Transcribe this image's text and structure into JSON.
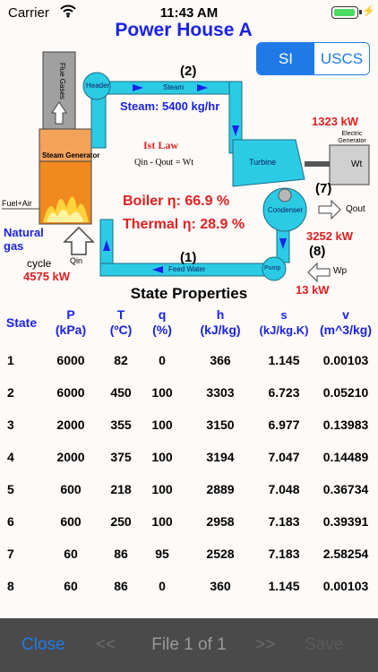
{
  "status_bar": {
    "carrier": "Carrier",
    "time": "11:43 AM"
  },
  "title": "Power House A",
  "units": {
    "si": "SI",
    "uscs": "USCS",
    "selected": "SI"
  },
  "diagram": {
    "flue_gases": "Flue Gases",
    "header": "Header",
    "steam_pipe": "Steam",
    "state_2": "(2)",
    "steam_flow": "Steam: 5400 kg/hr",
    "steam_generator": "Steam Generator",
    "first_law": "Ist Law",
    "law_equation": "Qin - Qout = Wt",
    "turbine": "Turbine",
    "electric_power": "1323 kW",
    "electric_generator": "Electric Generator",
    "wt": "Wt",
    "fuel_air": "Fuel+Air",
    "boiler_eff": "Boiler  η: 66.9 %",
    "thermal_eff": "Thermal η: 28.9 %",
    "state_7": "(7)",
    "condenser": "Condenser",
    "qout": "Qout",
    "qout_power": "3252 kW",
    "natural_gas": "Natural gas",
    "cycle": "cycle",
    "qin": "Qin",
    "qin_power": "4575 kW",
    "state_1": "(1)",
    "feed_water": "Feed Water",
    "pump": "Pump",
    "state_8": "(8)",
    "wp": "Wp",
    "wp_power": "13 kW"
  },
  "state_properties": {
    "title": "State Properties",
    "headers": [
      {
        "l1": "State",
        "l2": ""
      },
      {
        "l1": "P",
        "l2": "(kPa)"
      },
      {
        "l1": "T",
        "l2": "(ºC)"
      },
      {
        "l1": "q",
        "l2": "(%)"
      },
      {
        "l1": "h",
        "l2": "(kJ/kg)"
      },
      {
        "l1": "s",
        "l2": "(kJ/kg.K)"
      },
      {
        "l1": "v",
        "l2": "(m^3/kg)"
      }
    ],
    "rows": [
      [
        "1",
        "6000",
        "82",
        "0",
        "366",
        "1.145",
        "0.00103"
      ],
      [
        "2",
        "6000",
        "450",
        "100",
        "3303",
        "6.723",
        "0.05210"
      ],
      [
        "3",
        "2000",
        "355",
        "100",
        "3150",
        "6.977",
        "0.13983"
      ],
      [
        "4",
        "2000",
        "375",
        "100",
        "3194",
        "7.047",
        "0.14489"
      ],
      [
        "5",
        "600",
        "218",
        "100",
        "2889",
        "7.048",
        "0.36734"
      ],
      [
        "6",
        "600",
        "250",
        "100",
        "2958",
        "7.183",
        "0.39391"
      ],
      [
        "7",
        "60",
        "86",
        "95",
        "2528",
        "7.183",
        "2.58254"
      ],
      [
        "8",
        "60",
        "86",
        "0",
        "360",
        "1.145",
        "0.00103"
      ]
    ]
  },
  "bottom_bar": {
    "close": "Close",
    "prev": "<<",
    "file": "File 1 of 1",
    "next": ">>",
    "save": "Save"
  }
}
